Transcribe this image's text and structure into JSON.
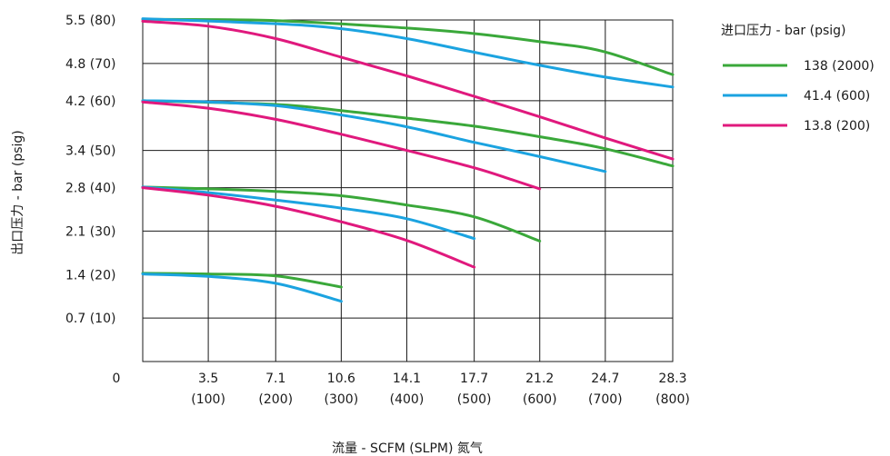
{
  "chart_data": {
    "type": "line",
    "title": "",
    "xlabel": "流量 - SCFM (SLPM) 氮气",
    "ylabel": "出口压力 - bar (psig)",
    "xlim": [
      0,
      28.3
    ],
    "ylim": [
      0,
      5.5
    ],
    "x_ticks": [
      {
        "value": 0,
        "label": "0",
        "sub": ""
      },
      {
        "value": 3.5,
        "label": "3.5",
        "sub": "(100)"
      },
      {
        "value": 7.1,
        "label": "7.1",
        "sub": "(200)"
      },
      {
        "value": 10.6,
        "label": "10.6",
        "sub": "(300)"
      },
      {
        "value": 14.1,
        "label": "14.1",
        "sub": "(400)"
      },
      {
        "value": 17.7,
        "label": "17.7",
        "sub": "(500)"
      },
      {
        "value": 21.2,
        "label": "21.2",
        "sub": "(600)"
      },
      {
        "value": 24.7,
        "label": "24.7",
        "sub": "(700)"
      },
      {
        "value": 28.3,
        "label": "28.3",
        "sub": "(800)"
      }
    ],
    "y_ticks": [
      {
        "value": 0.7,
        "label": "0.7 (10)"
      },
      {
        "value": 1.4,
        "label": "1.4 (20)"
      },
      {
        "value": 2.1,
        "label": "2.1 (30)"
      },
      {
        "value": 2.8,
        "label": "2.8 (40)"
      },
      {
        "value": 3.4,
        "label": "3.4 (50)"
      },
      {
        "value": 4.2,
        "label": "4.2 (60)"
      },
      {
        "value": 4.8,
        "label": "4.8 (70)"
      },
      {
        "value": 5.5,
        "label": "5.5 (80)"
      }
    ],
    "grid": true,
    "legend": {
      "title": "进口压力 - bar (psig)",
      "placement": "right",
      "entries": [
        {
          "label": "138 (2000)",
          "color": "#3aa83a"
        },
        {
          "label": "41.4 (600)",
          "color": "#1ba3e0"
        },
        {
          "label": "13.8 (200)",
          "color": "#e0197d"
        }
      ]
    },
    "series": [
      {
        "group": "138 (2000)",
        "color": "#3aa83a",
        "x": [
          0,
          7.1,
          14.1,
          17.7,
          21.2,
          24.5,
          28.3
        ],
        "y": [
          5.51,
          5.49,
          5.37,
          5.28,
          5.15,
          5.0,
          4.62
        ]
      },
      {
        "group": "41.4 (600)",
        "color": "#1ba3e0",
        "x": [
          0,
          7.1,
          10.6,
          14.1,
          17.7,
          21.2,
          24.7,
          28.3
        ],
        "y": [
          5.52,
          5.44,
          5.36,
          5.2,
          4.98,
          4.77,
          4.58,
          4.42
        ]
      },
      {
        "group": "13.8 (200)",
        "color": "#e0197d",
        "x": [
          0,
          3.5,
          7.1,
          10.6,
          14.1,
          17.7,
          21.2,
          24.7,
          28.3
        ],
        "y": [
          5.48,
          5.4,
          5.2,
          4.9,
          4.6,
          4.27,
          3.94,
          3.6,
          3.26
        ]
      },
      {
        "group": "138 (2000)",
        "color": "#3aa83a",
        "x": [
          0,
          7.1,
          10.6,
          14.1,
          17.7,
          21.2,
          24.5,
          28.3
        ],
        "y": [
          4.2,
          4.14,
          4.04,
          3.92,
          3.79,
          3.62,
          3.44,
          3.15
        ]
      },
      {
        "group": "41.4 (600)",
        "color": "#1ba3e0",
        "x": [
          0,
          3.5,
          7.1,
          10.6,
          14.1,
          17.7,
          21.2,
          24.7
        ],
        "y": [
          4.2,
          4.18,
          4.12,
          3.97,
          3.78,
          3.53,
          3.3,
          3.06
        ]
      },
      {
        "group": "13.8 (200)",
        "color": "#e0197d",
        "x": [
          0,
          3.5,
          7.1,
          10.6,
          14.1,
          17.7,
          19.7,
          21.2
        ],
        "y": [
          4.18,
          4.08,
          3.9,
          3.66,
          3.4,
          3.12,
          2.93,
          2.78
        ]
      },
      {
        "group": "138 (2000)",
        "color": "#3aa83a",
        "x": [
          0,
          3.5,
          7.1,
          10.6,
          14.1,
          17.7,
          21.2
        ],
        "y": [
          2.81,
          2.78,
          2.74,
          2.67,
          2.52,
          2.33,
          1.94
        ]
      },
      {
        "group": "41.4 (600)",
        "color": "#1ba3e0",
        "x": [
          0,
          3.5,
          7.1,
          10.6,
          14.1,
          17.7
        ],
        "y": [
          2.81,
          2.72,
          2.6,
          2.47,
          2.3,
          1.98
        ]
      },
      {
        "group": "13.8 (200)",
        "color": "#e0197d",
        "x": [
          0,
          3.5,
          7.1,
          10.6,
          14.1,
          17.7
        ],
        "y": [
          2.8,
          2.68,
          2.5,
          2.25,
          1.95,
          1.52
        ]
      },
      {
        "group": "138 (2000)",
        "color": "#3aa83a",
        "x": [
          0,
          3.5,
          7.1,
          10.6
        ],
        "y": [
          1.42,
          1.41,
          1.38,
          1.2
        ]
      },
      {
        "group": "41.4 (600)",
        "color": "#1ba3e0",
        "x": [
          0,
          3.5,
          7.1,
          10.6
        ],
        "y": [
          1.41,
          1.37,
          1.26,
          0.97
        ]
      }
    ]
  }
}
